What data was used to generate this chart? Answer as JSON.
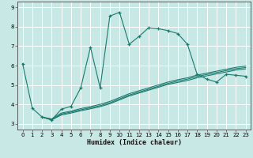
{
  "title": "",
  "xlabel": "Humidex (Indice chaleur)",
  "bg_color": "#c8e8e5",
  "grid_color": "#ffffff",
  "line_color": "#1a7a6e",
  "xlim": [
    -0.5,
    23.5
  ],
  "ylim": [
    2.7,
    9.3
  ],
  "xticks": [
    0,
    1,
    2,
    3,
    4,
    5,
    6,
    7,
    8,
    9,
    10,
    11,
    12,
    13,
    14,
    15,
    16,
    17,
    18,
    19,
    20,
    21,
    22,
    23
  ],
  "yticks": [
    3,
    4,
    5,
    6,
    7,
    8,
    9
  ],
  "main_line_x": [
    0,
    1,
    2,
    3,
    4,
    5,
    6,
    7,
    8,
    9,
    10,
    11,
    12,
    13,
    14,
    15,
    16,
    17,
    18,
    19,
    20,
    21,
    22,
    23
  ],
  "main_line_y": [
    6.1,
    3.8,
    3.35,
    3.2,
    3.75,
    3.9,
    4.85,
    6.95,
    4.85,
    8.55,
    8.75,
    7.1,
    7.5,
    7.95,
    7.9,
    7.8,
    7.65,
    7.1,
    5.55,
    5.3,
    5.15,
    5.55,
    5.5,
    5.45
  ],
  "line2_x": [
    2,
    3,
    4,
    5,
    6,
    7,
    8,
    9,
    10,
    11,
    12,
    13,
    14,
    15,
    16,
    17,
    18,
    19,
    20,
    21,
    22,
    23
  ],
  "line2_y": [
    3.35,
    3.2,
    3.5,
    3.6,
    3.72,
    3.82,
    3.93,
    4.08,
    4.28,
    4.48,
    4.63,
    4.78,
    4.93,
    5.08,
    5.2,
    5.3,
    5.44,
    5.54,
    5.64,
    5.74,
    5.84,
    5.9
  ],
  "line3_x": [
    2,
    3,
    4,
    5,
    6,
    7,
    8,
    9,
    10,
    11,
    12,
    13,
    14,
    15,
    16,
    17,
    18,
    19,
    20,
    21,
    22,
    23
  ],
  "line3_y": [
    3.35,
    3.2,
    3.45,
    3.55,
    3.67,
    3.77,
    3.88,
    4.03,
    4.23,
    4.43,
    4.58,
    4.73,
    4.88,
    5.03,
    5.13,
    5.23,
    5.37,
    5.47,
    5.57,
    5.67,
    5.77,
    5.83
  ],
  "line4_x": [
    2,
    3,
    4,
    5,
    6,
    7,
    8,
    9,
    10,
    11,
    12,
    13,
    14,
    15,
    16,
    17,
    18,
    19,
    20,
    21,
    22,
    23
  ],
  "line4_y": [
    3.35,
    3.25,
    3.55,
    3.65,
    3.78,
    3.88,
    4.0,
    4.15,
    4.35,
    4.55,
    4.7,
    4.85,
    5.0,
    5.15,
    5.27,
    5.37,
    5.51,
    5.61,
    5.71,
    5.81,
    5.91,
    5.97
  ]
}
